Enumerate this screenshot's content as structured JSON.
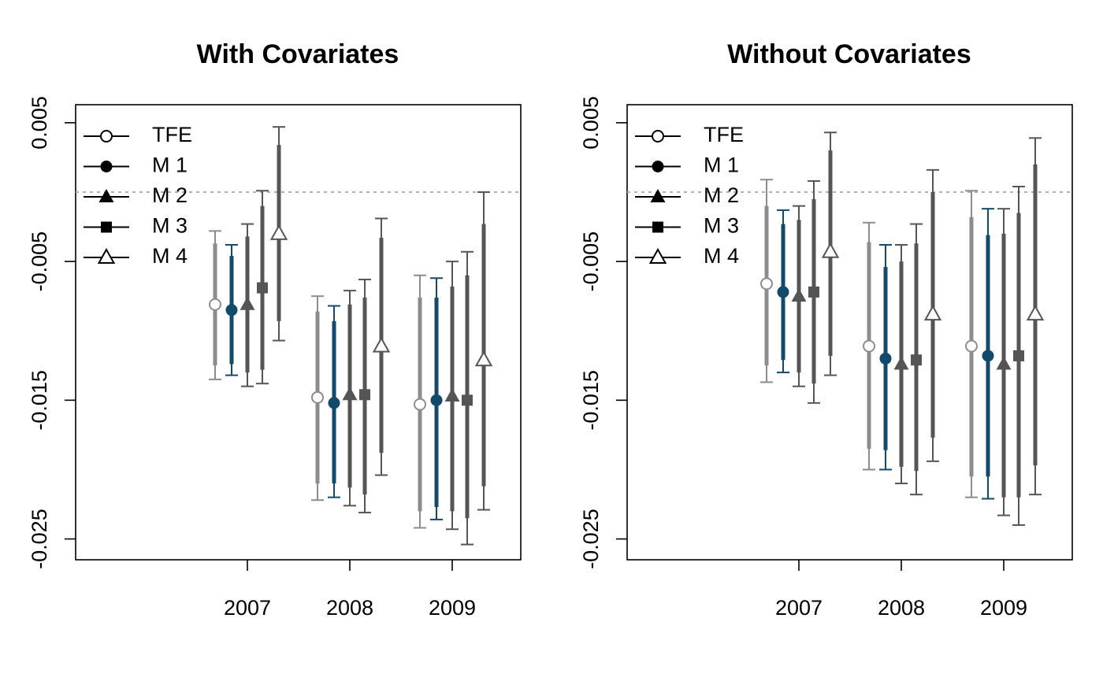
{
  "chart_data": [
    {
      "type": "errorbar",
      "title": "With Covariates",
      "xlabel": "",
      "ylabel": "",
      "categories": [
        "2007",
        "2008",
        "2009"
      ],
      "yticks": [
        "-0.025",
        "-0.015",
        "-0.005",
        "0.005"
      ],
      "ytick_values": [
        -0.025,
        -0.015,
        -0.005,
        0.005
      ],
      "ylim": [
        -0.0265,
        0.0063
      ],
      "reference_line": 0,
      "legend_position": "top-left",
      "series": [
        {
          "name": "TFE",
          "marker": "open-circle",
          "color": "#8c8c8c",
          "values": [
            -0.0081,
            -0.0148,
            -0.0153
          ],
          "inner": [
            [
              -0.0125,
              -0.0037
            ],
            [
              -0.021,
              -0.0086
            ],
            [
              -0.023,
              -0.0076
            ]
          ],
          "outer": [
            [
              -0.0135,
              -0.0028
            ],
            [
              -0.0222,
              -0.0075
            ],
            [
              -0.0242,
              -0.006
            ]
          ]
        },
        {
          "name": "M 1",
          "marker": "filled-circle",
          "color": "#124a6b",
          "values": [
            -0.0085,
            -0.0152,
            -0.015
          ],
          "inner": [
            [
              -0.0124,
              -0.0046
            ],
            [
              -0.021,
              -0.0093
            ],
            [
              -0.0227,
              -0.0076
            ]
          ],
          "outer": [
            [
              -0.0132,
              -0.0038
            ],
            [
              -0.022,
              -0.0082
            ],
            [
              -0.0236,
              -0.0062
            ]
          ]
        },
        {
          "name": "M 2",
          "marker": "filled-triangle",
          "color": "#555555",
          "values": [
            -0.0081,
            -0.0146,
            -0.0147
          ],
          "inner": [
            [
              -0.013,
              -0.0032
            ],
            [
              -0.0213,
              -0.0081
            ],
            [
              -0.023,
              -0.0068
            ]
          ],
          "outer": [
            [
              -0.014,
              -0.0023
            ],
            [
              -0.0226,
              -0.0071
            ],
            [
              -0.0243,
              -0.005
            ]
          ]
        },
        {
          "name": "M 3",
          "marker": "filled-square",
          "color": "#555555",
          "values": [
            -0.0069,
            -0.0146,
            -0.015
          ],
          "inner": [
            [
              -0.0128,
              -0.001
            ],
            [
              -0.0218,
              -0.0076
            ],
            [
              -0.0235,
              -0.006
            ]
          ],
          "outer": [
            [
              -0.0138,
              0.0001
            ],
            [
              -0.0231,
              -0.0063
            ],
            [
              -0.0254,
              -0.0043
            ]
          ]
        },
        {
          "name": "M 4",
          "marker": "open-triangle",
          "color": "#555555",
          "values": [
            -0.003,
            -0.0111,
            -0.0121
          ],
          "inner": [
            [
              -0.0093,
              0.0034
            ],
            [
              -0.0188,
              -0.0033
            ],
            [
              -0.0212,
              -0.0023
            ]
          ],
          "outer": [
            [
              -0.0107,
              0.0047
            ],
            [
              -0.0204,
              -0.0019
            ],
            [
              -0.0229,
              0.0
            ]
          ]
        }
      ]
    },
    {
      "type": "errorbar",
      "title": "Without Covariates",
      "xlabel": "",
      "ylabel": "",
      "categories": [
        "2007",
        "2008",
        "2009"
      ],
      "yticks": [
        "-0.025",
        "-0.015",
        "-0.005",
        "0.005"
      ],
      "ytick_values": [
        -0.025,
        -0.015,
        -0.005,
        0.005
      ],
      "ylim": [
        -0.0265,
        0.0063
      ],
      "reference_line": 0,
      "legend_position": "top-left",
      "series": [
        {
          "name": "TFE",
          "marker": "open-circle",
          "color": "#8c8c8c",
          "values": [
            -0.0066,
            -0.0111,
            -0.0111
          ],
          "inner": [
            [
              -0.0125,
              -0.001
            ],
            [
              -0.0185,
              -0.0036
            ],
            [
              -0.0205,
              -0.0018
            ]
          ],
          "outer": [
            [
              -0.0137,
              0.0009
            ],
            [
              -0.02,
              -0.0022
            ],
            [
              -0.022,
              0.0001
            ]
          ]
        },
        {
          "name": "M 1",
          "marker": "filled-circle",
          "color": "#124a6b",
          "values": [
            -0.0072,
            -0.012,
            -0.0118
          ],
          "inner": [
            [
              -0.0121,
              -0.0023
            ],
            [
              -0.0186,
              -0.0054
            ],
            [
              -0.0205,
              -0.0031
            ]
          ],
          "outer": [
            [
              -0.013,
              -0.0013
            ],
            [
              -0.02,
              -0.0038
            ],
            [
              -0.0221,
              -0.0012
            ]
          ]
        },
        {
          "name": "M 2",
          "marker": "filled-triangle",
          "color": "#555555",
          "values": [
            -0.0075,
            -0.0124,
            -0.0124
          ],
          "inner": [
            [
              -0.013,
              -0.002
            ],
            [
              -0.0198,
              -0.005
            ],
            [
              -0.022,
              -0.003
            ]
          ],
          "outer": [
            [
              -0.014,
              -0.001
            ],
            [
              -0.021,
              -0.0038
            ],
            [
              -0.0233,
              -0.0012
            ]
          ]
        },
        {
          "name": "M 3",
          "marker": "filled-square",
          "color": "#555555",
          "values": [
            -0.0072,
            -0.0121,
            -0.0118
          ],
          "inner": [
            [
              -0.0138,
              -0.0005
            ],
            [
              -0.0201,
              -0.0037
            ],
            [
              -0.022,
              -0.0015
            ]
          ],
          "outer": [
            [
              -0.0152,
              0.0008
            ],
            [
              -0.0218,
              -0.0023
            ],
            [
              -0.024,
              0.0004
            ]
          ]
        },
        {
          "name": "M 4",
          "marker": "open-triangle",
          "color": "#555555",
          "values": [
            -0.0043,
            -0.0088,
            -0.0088
          ],
          "inner": [
            [
              -0.0118,
              0.003
            ],
            [
              -0.0177,
              0.0
            ],
            [
              -0.0197,
              0.002
            ]
          ],
          "outer": [
            [
              -0.0132,
              0.0043
            ],
            [
              -0.0194,
              0.0016
            ],
            [
              -0.0218,
              0.0039
            ]
          ]
        }
      ]
    }
  ]
}
